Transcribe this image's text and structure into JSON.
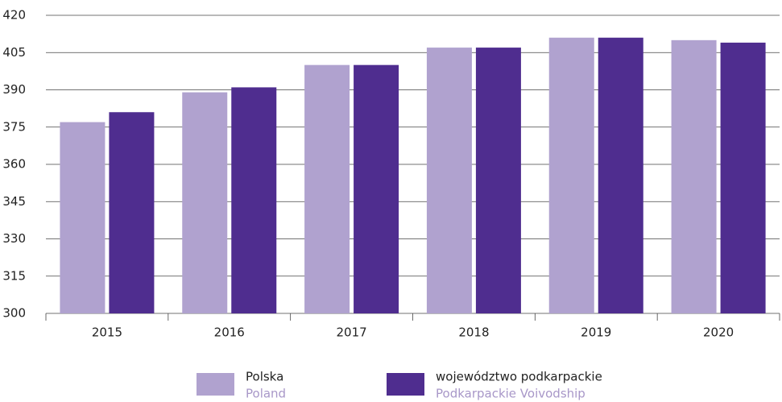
{
  "chart_data": {
    "type": "bar",
    "categories": [
      "2015",
      "2016",
      "2017",
      "2018",
      "2019",
      "2020"
    ],
    "series": [
      {
        "name": "Polska",
        "subname": "Poland",
        "color": "#b0a2cf",
        "values": [
          377,
          389,
          400,
          407,
          411,
          410
        ]
      },
      {
        "name": "województwo podkarpackie",
        "subname": "Podkarpackie Voivodship",
        "color": "#4f2d8f",
        "values": [
          381,
          391,
          400,
          407,
          411,
          409
        ]
      }
    ],
    "ylim": [
      300,
      420
    ],
    "yticks": [
      300,
      315,
      330,
      345,
      360,
      375,
      390,
      405,
      420
    ],
    "grid": true,
    "legend": "bottom"
  }
}
